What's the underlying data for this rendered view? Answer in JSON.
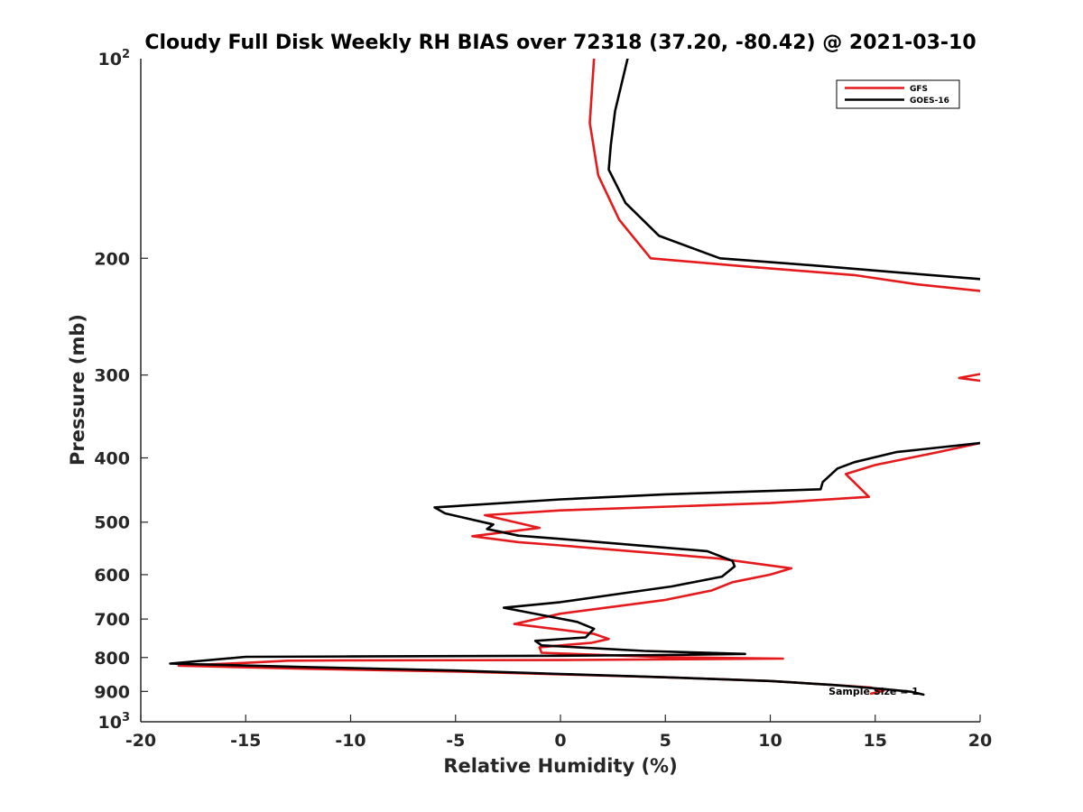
{
  "chart_data": {
    "type": "line",
    "title": "Cloudy Full Disk Weekly RH BIAS over 72318 (37.20, -80.42) @ 2021-03-10",
    "xlabel": "Relative Humidity (%)",
    "ylabel": "Pressure (mb)",
    "xlim": [
      -20,
      20
    ],
    "ylim": [
      100,
      1000
    ],
    "yscale": "log",
    "y_reversed": true,
    "x_ticks": [
      {
        "value": -20,
        "label": "-20"
      },
      {
        "value": -15,
        "label": "-15"
      },
      {
        "value": -10,
        "label": "-10"
      },
      {
        "value": -5,
        "label": "-5"
      },
      {
        "value": 0,
        "label": "0"
      },
      {
        "value": 5,
        "label": "5"
      },
      {
        "value": 10,
        "label": "10"
      },
      {
        "value": 15,
        "label": "15"
      },
      {
        "value": 20,
        "label": "20"
      }
    ],
    "y_ticks": [
      {
        "value": 100,
        "base": "10",
        "exp": "2"
      },
      {
        "value": 200,
        "label": "200"
      },
      {
        "value": 300,
        "label": "300"
      },
      {
        "value": 400,
        "label": "400"
      },
      {
        "value": 500,
        "label": "500"
      },
      {
        "value": 600,
        "label": "600"
      },
      {
        "value": 700,
        "label": "700"
      },
      {
        "value": 800,
        "label": "800"
      },
      {
        "value": 900,
        "label": "900"
      },
      {
        "value": 1000,
        "base": "10",
        "exp": "3"
      }
    ],
    "legend": {
      "location": "top-right",
      "entries": [
        "GFS",
        "GOES-16"
      ]
    },
    "annotation": "Sample Size = 1",
    "series": [
      {
        "name": "GFS",
        "color": "#e41a1c",
        "segments": [
          [
            [
              1.6,
              100
            ],
            [
              1.4,
              125
            ],
            [
              1.8,
              150
            ],
            [
              2.8,
              175
            ],
            [
              4.3,
              200
            ],
            [
              9,
              206
            ],
            [
              14,
              212
            ],
            [
              17,
              219
            ],
            [
              20,
              224
            ]
          ],
          [
            [
              20,
              299
            ],
            [
              19,
              303
            ],
            [
              20,
              306
            ]
          ],
          [
            [
              20,
              380
            ],
            [
              18,
              392
            ],
            [
              15,
              410
            ],
            [
              13.6,
              423
            ],
            [
              14.7,
              458
            ],
            [
              10,
              468
            ],
            [
              0,
              480
            ],
            [
              -3.6,
              488
            ],
            [
              -1,
              510
            ],
            [
              -4.2,
              525
            ],
            [
              -2,
              536
            ],
            [
              0,
              542
            ],
            [
              7.5,
              567
            ],
            [
              11,
              587
            ],
            [
              10,
              600
            ],
            [
              8.2,
              616
            ],
            [
              7.2,
              634
            ],
            [
              5,
              655
            ],
            [
              0,
              687
            ],
            [
              -2.2,
              712
            ],
            [
              1.6,
              737
            ],
            [
              2.3,
              750
            ],
            [
              1.5,
              760
            ],
            [
              -1,
              772
            ],
            [
              -0.9,
              787
            ],
            [
              5,
              799
            ],
            [
              10.6,
              803
            ],
            [
              5,
              805
            ],
            [
              0,
              807
            ],
            [
              -10,
              808
            ],
            [
              -13,
              809
            ],
            [
              -15,
              815
            ],
            [
              -18.2,
              823
            ],
            [
              -12,
              832
            ],
            [
              -5,
              840
            ],
            [
              0,
              848
            ],
            [
              5,
              857
            ],
            [
              10,
              868
            ],
            [
              13,
              880
            ],
            [
              14.8,
              888
            ],
            [
              15.4,
              898
            ],
            [
              14.8,
              907
            ]
          ]
        ]
      },
      {
        "name": "GOES-16",
        "color": "#000000",
        "segments": [
          [
            [
              3.2,
              100
            ],
            [
              2.6,
              120
            ],
            [
              2.4,
              135
            ],
            [
              2.3,
              147
            ],
            [
              3.1,
              165
            ],
            [
              4.7,
              185
            ],
            [
              7.6,
              200
            ],
            [
              12,
              205
            ],
            [
              16,
              210
            ],
            [
              20,
              215
            ]
          ],
          [
            [
              20,
              380
            ],
            [
              16,
              392
            ],
            [
              14,
              406
            ],
            [
              13.2,
              415
            ],
            [
              12.5,
              435
            ],
            [
              12.4,
              446
            ],
            [
              5,
              454
            ],
            [
              0,
              462
            ],
            [
              -6,
              475
            ],
            [
              -5.5,
              485
            ],
            [
              -3.2,
              504
            ],
            [
              -3.5,
              512
            ],
            [
              -2,
              524
            ],
            [
              0,
              530
            ],
            [
              7,
              553
            ],
            [
              8.2,
              572
            ],
            [
              8.3,
              583
            ],
            [
              7.7,
              604
            ],
            [
              5.3,
              625
            ],
            [
              3,
              640
            ],
            [
              0,
              660
            ],
            [
              -2.7,
              673
            ],
            [
              0.8,
              707
            ],
            [
              1.6,
              724
            ],
            [
              1.2,
              746
            ],
            [
              -1.2,
              755
            ],
            [
              -0.9,
              767
            ],
            [
              4,
              782
            ],
            [
              8.8,
              790
            ],
            [
              5,
              793
            ],
            [
              0,
              795
            ],
            [
              -10,
              797
            ],
            [
              -15,
              798
            ],
            [
              -18.6,
              817
            ],
            [
              -12,
              827
            ],
            [
              -5,
              837
            ],
            [
              0,
              847
            ],
            [
              5,
              857
            ],
            [
              10,
              868
            ],
            [
              13,
              880
            ],
            [
              15.5,
              893
            ],
            [
              16.7,
              901
            ],
            [
              17.3,
              910
            ]
          ]
        ]
      }
    ]
  }
}
